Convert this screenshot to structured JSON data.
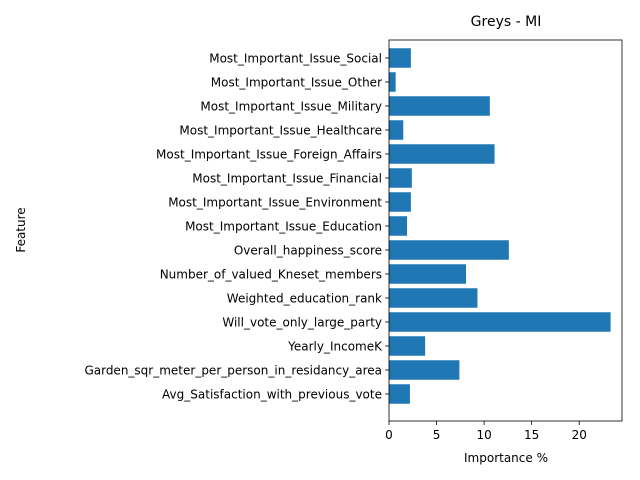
{
  "chart_data": {
    "type": "bar",
    "orientation": "horizontal",
    "title": "Greys - MI",
    "xlabel": "Importance %",
    "ylabel": "Feature",
    "xlim": [
      0,
      24.5
    ],
    "xticks": [
      0,
      5,
      10,
      15,
      20
    ],
    "bar_color": "#1f77b4",
    "grid": false,
    "categories": [
      "Avg_Satisfaction_with_previous_vote",
      "Garden_sqr_meter_per_person_in_residancy_area",
      "Yearly_IncomeK",
      "Will_vote_only_large_party",
      "Weighted_education_rank",
      "Number_of_valued_Kneset_members",
      "Overall_happiness_score",
      "Most_Important_Issue_Education",
      "Most_Important_Issue_Environment",
      "Most_Important_Issue_Financial",
      "Most_Important_Issue_Foreign_Affairs",
      "Most_Important_Issue_Healthcare",
      "Most_Important_Issue_Military",
      "Most_Important_Issue_Other",
      "Most_Important_Issue_Social"
    ],
    "values": [
      2.2,
      7.4,
      3.8,
      23.3,
      9.3,
      8.1,
      12.6,
      1.9,
      2.3,
      2.4,
      11.1,
      1.5,
      10.6,
      0.7,
      2.3
    ]
  }
}
